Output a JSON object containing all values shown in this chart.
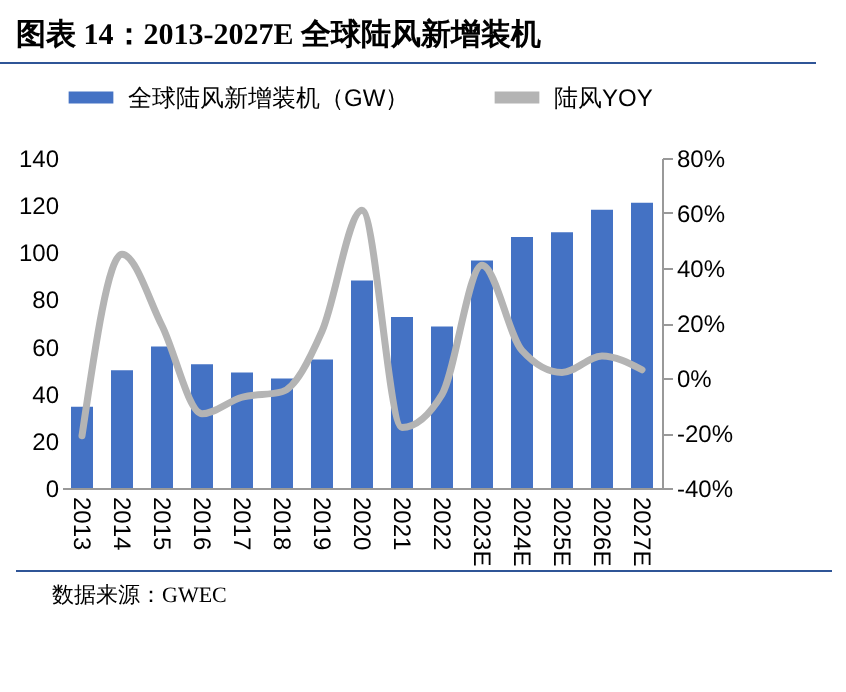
{
  "chart_data": {
    "type": "bar",
    "title": "图表 14：2013-2027E 全球陆风新增装机",
    "annotations": [
      "数据来源：GWEC"
    ],
    "categories": [
      "2013",
      "2014",
      "2015",
      "2016",
      "2017",
      "2018",
      "2019",
      "2020",
      "2021",
      "2022",
      "2023E",
      "2024E",
      "2025E",
      "2026E",
      "2027E"
    ],
    "series": [
      {
        "name": "全球陆风新增装机（GW）",
        "color": "#4472c4",
        "values": [
          34.5,
          50,
          60,
          52.5,
          49,
          46.5,
          54.5,
          88,
          72.5,
          68.5,
          96.5,
          106.5,
          108.5,
          118,
          121
        ]
      },
      {
        "name": "陆风YOY",
        "type": "line",
        "axis": "y2",
        "color": "#b4b4b4",
        "values": [
          -21,
          45,
          19,
          -13,
          -7,
          -5,
          17,
          61,
          -18,
          -6,
          41,
          10,
          2,
          8,
          3
        ]
      }
    ],
    "ylim": [
      0,
      140
    ],
    "yticks": [
      0,
      20,
      40,
      60,
      80,
      100,
      120,
      140
    ],
    "y2lim": [
      -40,
      80
    ],
    "y2ticks": [
      {
        "value": -40,
        "label": "-40%"
      },
      {
        "value": -20,
        "label": "-20%"
      },
      {
        "value": 0,
        "label": "0%"
      },
      {
        "value": 20,
        "label": "20%"
      },
      {
        "value": 40,
        "label": "40%"
      },
      {
        "value": 60,
        "label": "60%"
      },
      {
        "value": 80,
        "label": "80%"
      }
    ],
    "legend": "top",
    "grid": false
  }
}
